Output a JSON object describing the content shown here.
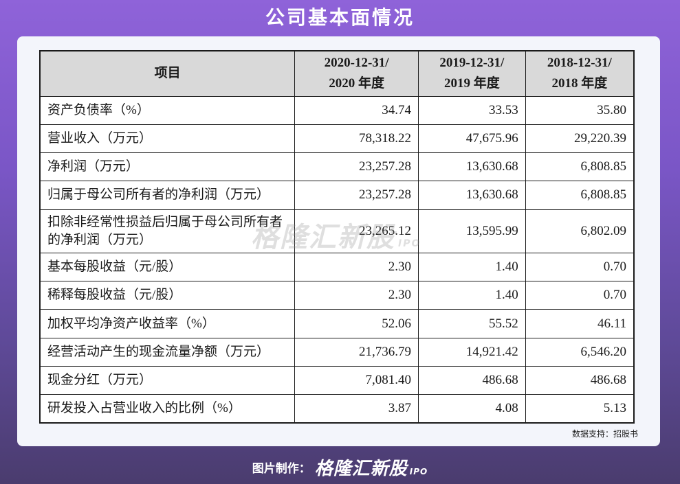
{
  "title": "公司基本面情况",
  "table": {
    "headers": [
      "项目",
      "2020-12-31/",
      "2020 年度",
      "2019-12-31/",
      "2019 年度",
      "2018-12-31/",
      "2018 年度"
    ],
    "rows": [
      {
        "item": "资产负债率（%）",
        "v2020": "34.74",
        "v2019": "33.53",
        "v2018": "35.80"
      },
      {
        "item": "营业收入（万元）",
        "v2020": "78,318.22",
        "v2019": "47,675.96",
        "v2018": "29,220.39"
      },
      {
        "item": "净利润（万元）",
        "v2020": "23,257.28",
        "v2019": "13,630.68",
        "v2018": "6,808.85"
      },
      {
        "item": "归属于母公司所有者的净利润（万元）",
        "v2020": "23,257.28",
        "v2019": "13,630.68",
        "v2018": "6,808.85"
      },
      {
        "item": "扣除非经常性损益后归属于母公司所有者的净利润（万元）",
        "v2020": "23,265.12",
        "v2019": "13,595.99",
        "v2018": "6,802.09"
      },
      {
        "item": "基本每股收益（元/股）",
        "v2020": "2.30",
        "v2019": "1.40",
        "v2018": "0.70"
      },
      {
        "item": "稀释每股收益（元/股）",
        "v2020": "2.30",
        "v2019": "1.40",
        "v2018": "0.70"
      },
      {
        "item": "加权平均净资产收益率（%）",
        "v2020": "52.06",
        "v2019": "55.52",
        "v2018": "46.11"
      },
      {
        "item": "经营活动产生的现金流量净额（万元）",
        "v2020": "21,736.79",
        "v2019": "14,921.42",
        "v2018": "6,546.20"
      },
      {
        "item": "现金分红（万元）",
        "v2020": "7,081.40",
        "v2019": "486.68",
        "v2018": "486.68"
      },
      {
        "item": "研发投入占营业收入的比例（%）",
        "v2020": "3.87",
        "v2019": "4.08",
        "v2018": "5.13"
      }
    ]
  },
  "source": "数据支持：招股书",
  "watermark": {
    "text": "格隆汇新股",
    "suffix": "IPO"
  },
  "footer": {
    "label": "图片制作：",
    "logo": "格隆汇新股",
    "logo_suffix": "IPO"
  }
}
